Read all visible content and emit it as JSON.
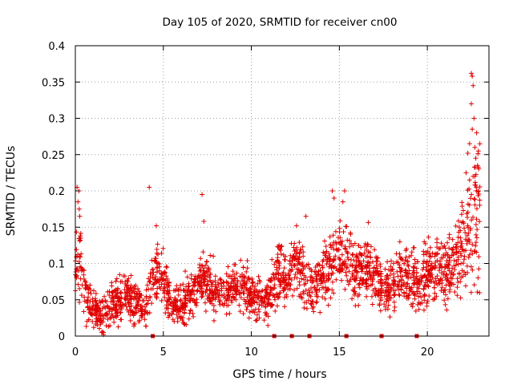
{
  "chart_data": {
    "type": "scatter",
    "title": "Day 105 of 2020, SRMTID for receiver cn00",
    "xlabel": "GPS time / hours",
    "ylabel": "SRMTID / TECUs",
    "xlim": [
      0,
      23.5
    ],
    "ylim": [
      0,
      0.4
    ],
    "x_ticks": [
      0,
      5,
      10,
      15,
      20
    ],
    "x_tick_labels": [
      "0",
      "5",
      "10",
      "15",
      "20"
    ],
    "y_ticks": [
      0,
      0.05,
      0.1,
      0.15,
      0.2,
      0.25,
      0.3,
      0.35,
      0.4
    ],
    "y_tick_labels": [
      "0",
      "0.05",
      "0.1",
      "0.15",
      "0.2",
      "0.25",
      "0.3",
      "0.35",
      "0.4"
    ],
    "grid": true,
    "point_color": "#e00000",
    "marker_symbol": "+",
    "profile": [
      [
        0.0,
        0.085,
        0.025
      ],
      [
        0.3,
        0.1,
        0.03
      ],
      [
        0.6,
        0.055,
        0.015
      ],
      [
        1.0,
        0.035,
        0.012
      ],
      [
        1.5,
        0.03,
        0.012
      ],
      [
        2.0,
        0.04,
        0.013
      ],
      [
        2.5,
        0.05,
        0.015
      ],
      [
        3.0,
        0.055,
        0.015
      ],
      [
        3.5,
        0.045,
        0.014
      ],
      [
        4.0,
        0.035,
        0.012
      ],
      [
        4.5,
        0.09,
        0.02
      ],
      [
        5.0,
        0.075,
        0.02
      ],
      [
        5.5,
        0.045,
        0.012
      ],
      [
        6.0,
        0.045,
        0.013
      ],
      [
        6.5,
        0.055,
        0.014
      ],
      [
        7.0,
        0.07,
        0.017
      ],
      [
        7.5,
        0.08,
        0.018
      ],
      [
        8.0,
        0.06,
        0.015
      ],
      [
        8.5,
        0.055,
        0.014
      ],
      [
        9.0,
        0.065,
        0.015
      ],
      [
        9.5,
        0.07,
        0.016
      ],
      [
        10.0,
        0.055,
        0.014
      ],
      [
        10.5,
        0.05,
        0.013
      ],
      [
        11.0,
        0.05,
        0.014
      ],
      [
        11.5,
        0.085,
        0.02
      ],
      [
        12.0,
        0.075,
        0.018
      ],
      [
        12.5,
        0.11,
        0.022
      ],
      [
        13.0,
        0.08,
        0.02
      ],
      [
        13.5,
        0.065,
        0.016
      ],
      [
        14.0,
        0.08,
        0.02
      ],
      [
        14.5,
        0.1,
        0.022
      ],
      [
        15.0,
        0.11,
        0.025
      ],
      [
        15.5,
        0.1,
        0.022
      ],
      [
        16.0,
        0.085,
        0.02
      ],
      [
        16.5,
        0.1,
        0.022
      ],
      [
        17.0,
        0.08,
        0.02
      ],
      [
        17.5,
        0.06,
        0.016
      ],
      [
        18.0,
        0.075,
        0.018
      ],
      [
        18.5,
        0.08,
        0.02
      ],
      [
        19.0,
        0.085,
        0.02
      ],
      [
        19.5,
        0.07,
        0.018
      ],
      [
        20.0,
        0.09,
        0.02
      ],
      [
        20.5,
        0.095,
        0.02
      ],
      [
        21.0,
        0.085,
        0.02
      ],
      [
        21.5,
        0.1,
        0.022
      ],
      [
        22.0,
        0.12,
        0.028
      ],
      [
        22.5,
        0.15,
        0.04
      ],
      [
        23.0,
        0.18,
        0.05
      ]
    ],
    "points_per_hour": 95,
    "outliers": [
      {
        "x": 0.1,
        "y": 0.205
      },
      {
        "x": 0.2,
        "y": 0.2
      },
      {
        "x": 0.15,
        "y": 0.185
      },
      {
        "x": 0.22,
        "y": 0.175
      },
      {
        "x": 0.25,
        "y": 0.165
      },
      {
        "x": 0.3,
        "y": 0.135
      },
      {
        "x": 4.2,
        "y": 0.205
      },
      {
        "x": 7.2,
        "y": 0.195
      },
      {
        "x": 7.3,
        "y": 0.158
      },
      {
        "x": 4.6,
        "y": 0.152
      },
      {
        "x": 13.1,
        "y": 0.165
      },
      {
        "x": 14.6,
        "y": 0.2
      },
      {
        "x": 14.7,
        "y": 0.19
      },
      {
        "x": 15.3,
        "y": 0.2
      },
      {
        "x": 15.2,
        "y": 0.185
      },
      {
        "x": 22.5,
        "y": 0.362
      },
      {
        "x": 22.55,
        "y": 0.358
      },
      {
        "x": 22.6,
        "y": 0.345
      },
      {
        "x": 22.5,
        "y": 0.32
      },
      {
        "x": 22.65,
        "y": 0.3
      },
      {
        "x": 22.55,
        "y": 0.285
      },
      {
        "x": 22.8,
        "y": 0.28
      },
      {
        "x": 22.4,
        "y": 0.265
      },
      {
        "x": 22.7,
        "y": 0.26
      },
      {
        "x": 22.3,
        "y": 0.252
      },
      {
        "x": 22.9,
        "y": 0.255
      },
      {
        "x": 22.75,
        "y": 0.245
      },
      {
        "x": 22.85,
        "y": 0.235
      },
      {
        "x": 22.2,
        "y": 0.225
      },
      {
        "x": 22.6,
        "y": 0.22
      },
      {
        "x": 22.4,
        "y": 0.215
      },
      {
        "x": 22.7,
        "y": 0.208
      },
      {
        "x": 22.9,
        "y": 0.2
      },
      {
        "x": 22.5,
        "y": 0.195
      },
      {
        "x": 1.5,
        "y": 0.005
      },
      {
        "x": 1.6,
        "y": 0.002
      }
    ],
    "gap_markers_x": [
      4.4,
      11.3,
      12.3,
      13.3,
      15.4,
      17.4,
      19.4
    ]
  }
}
